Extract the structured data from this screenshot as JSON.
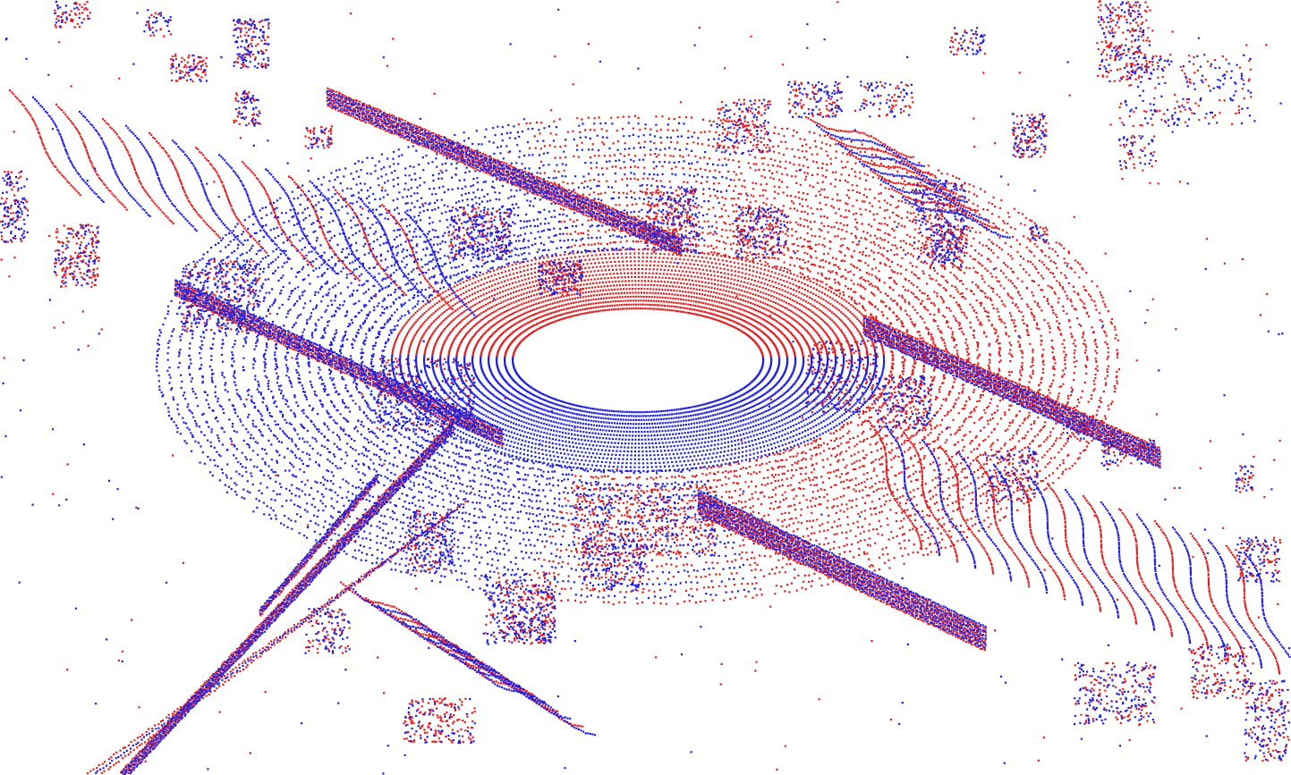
{
  "scene": {
    "kind": "lidar-point-cloud-overlay",
    "background_color": "#ffffff",
    "sweeps": [
      {
        "id": "sweep-a",
        "color": "#e02020"
      },
      {
        "id": "sweep-b",
        "color": "#2020e0"
      }
    ]
  }
}
